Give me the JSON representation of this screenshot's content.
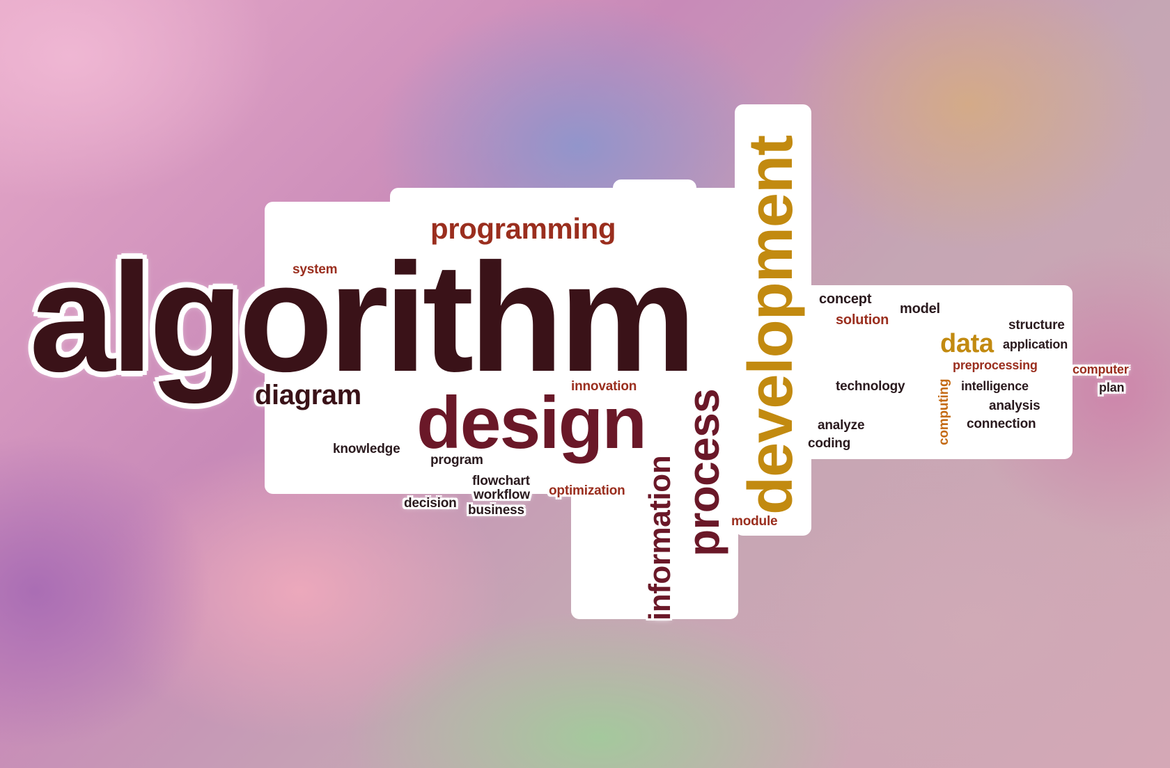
{
  "cloud": {
    "main_word": "algorithm",
    "design": "design",
    "development": "development",
    "process": "process",
    "information": "information",
    "programming": "programming",
    "diagram": "diagram",
    "data": "data",
    "words": [
      "concept",
      "solution",
      "structure",
      "model",
      "application",
      "knowledge",
      "program",
      "flowchart",
      "workflow",
      "business",
      "decision",
      "technology",
      "intelligence",
      "analysis",
      "computing",
      "connection",
      "computer",
      "plan",
      "coding",
      "analyze",
      "innovation",
      "optimization",
      "module",
      "preprocessing",
      "system"
    ]
  },
  "colors": {
    "primary": "#3a1218",
    "maroon": "#6a1828",
    "accent": "#c28a10",
    "red": "#9a2e1e"
  }
}
